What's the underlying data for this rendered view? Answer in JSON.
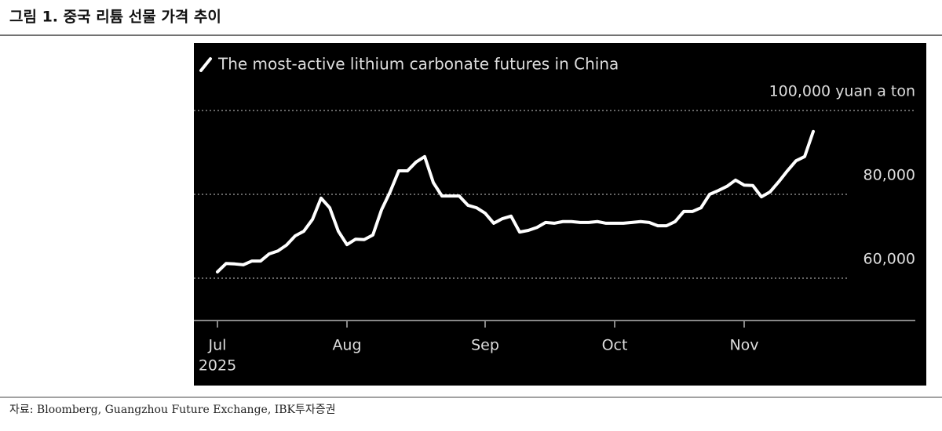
{
  "header": {
    "title": "그림 1. 중국 리튬 선물 가격 추이"
  },
  "chart_data": {
    "type": "line",
    "legend": "The most-active lithium carbonate futures in China",
    "categories": [
      "Jul",
      null,
      null,
      null,
      null,
      null,
      null,
      null,
      null,
      null,
      null,
      null,
      null,
      null,
      null,
      "Aug",
      null,
      null,
      null,
      null,
      null,
      null,
      null,
      null,
      null,
      null,
      null,
      null,
      null,
      null,
      null,
      "Sep",
      null,
      null,
      null,
      null,
      null,
      null,
      null,
      null,
      null,
      null,
      null,
      null,
      null,
      null,
      "Oct",
      null,
      null,
      null,
      null,
      null,
      null,
      null,
      null,
      null,
      null,
      null,
      null,
      null,
      null,
      "Nov",
      null,
      null,
      null,
      null,
      null,
      null,
      null,
      null
    ],
    "year_label": "2025",
    "values": [
      61500,
      63500,
      63400,
      63200,
      64100,
      64100,
      65800,
      66500,
      67900,
      70100,
      71200,
      74000,
      79100,
      76800,
      71200,
      68000,
      69300,
      69200,
      70300,
      76300,
      80600,
      85600,
      85600,
      87700,
      89000,
      82800,
      79600,
      79600,
      79600,
      77400,
      76800,
      75500,
      73100,
      74200,
      74800,
      71000,
      71400,
      72100,
      73300,
      73100,
      73500,
      73500,
      73300,
      73300,
      73500,
      73100,
      73100,
      73100,
      73300,
      73500,
      73300,
      72500,
      72500,
      73500,
      75900,
      75900,
      76800,
      80000,
      80900,
      81900,
      83400,
      82200,
      82100,
      79400,
      80600,
      83000,
      85600,
      88000,
      89000,
      95000
    ],
    "color": "#ffffff",
    "ylim": [
      50000,
      110000
    ],
    "yticks": [
      {
        "value": 60000,
        "label": "60,000"
      },
      {
        "value": 80000,
        "label": "80,000"
      },
      {
        "value": 100000,
        "label": "100,000 yuan a ton"
      }
    ],
    "grid": true
  },
  "footer": {
    "source": "자료: Bloomberg, Guangzhou Future Exchange, IBK투자증권"
  }
}
